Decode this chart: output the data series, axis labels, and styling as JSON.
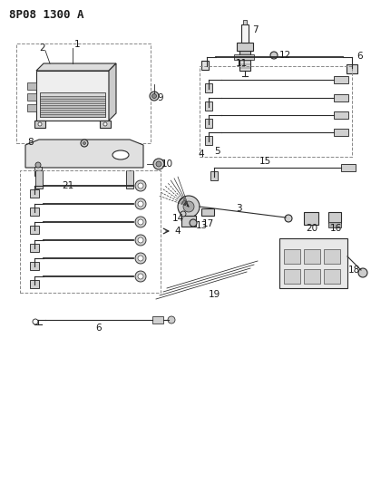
{
  "title": "8P08 1300 A",
  "bg_color": "#ffffff",
  "line_color": "#2a2a2a",
  "label_color": "#1a1a1a",
  "title_fontsize": 9,
  "label_fontsize": 7.5
}
